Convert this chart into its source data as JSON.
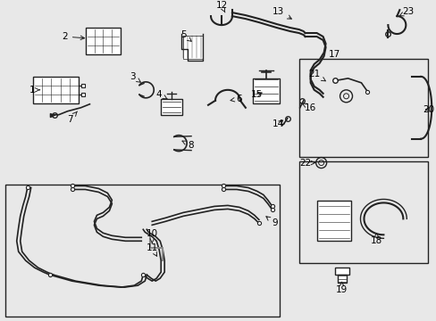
{
  "bg_color": "#e8e8e8",
  "line_color": "#222222",
  "label_color": "#000000",
  "box_bg": "#e8e8e8",
  "fig_width": 4.89,
  "fig_height": 3.6,
  "dpi": 100
}
